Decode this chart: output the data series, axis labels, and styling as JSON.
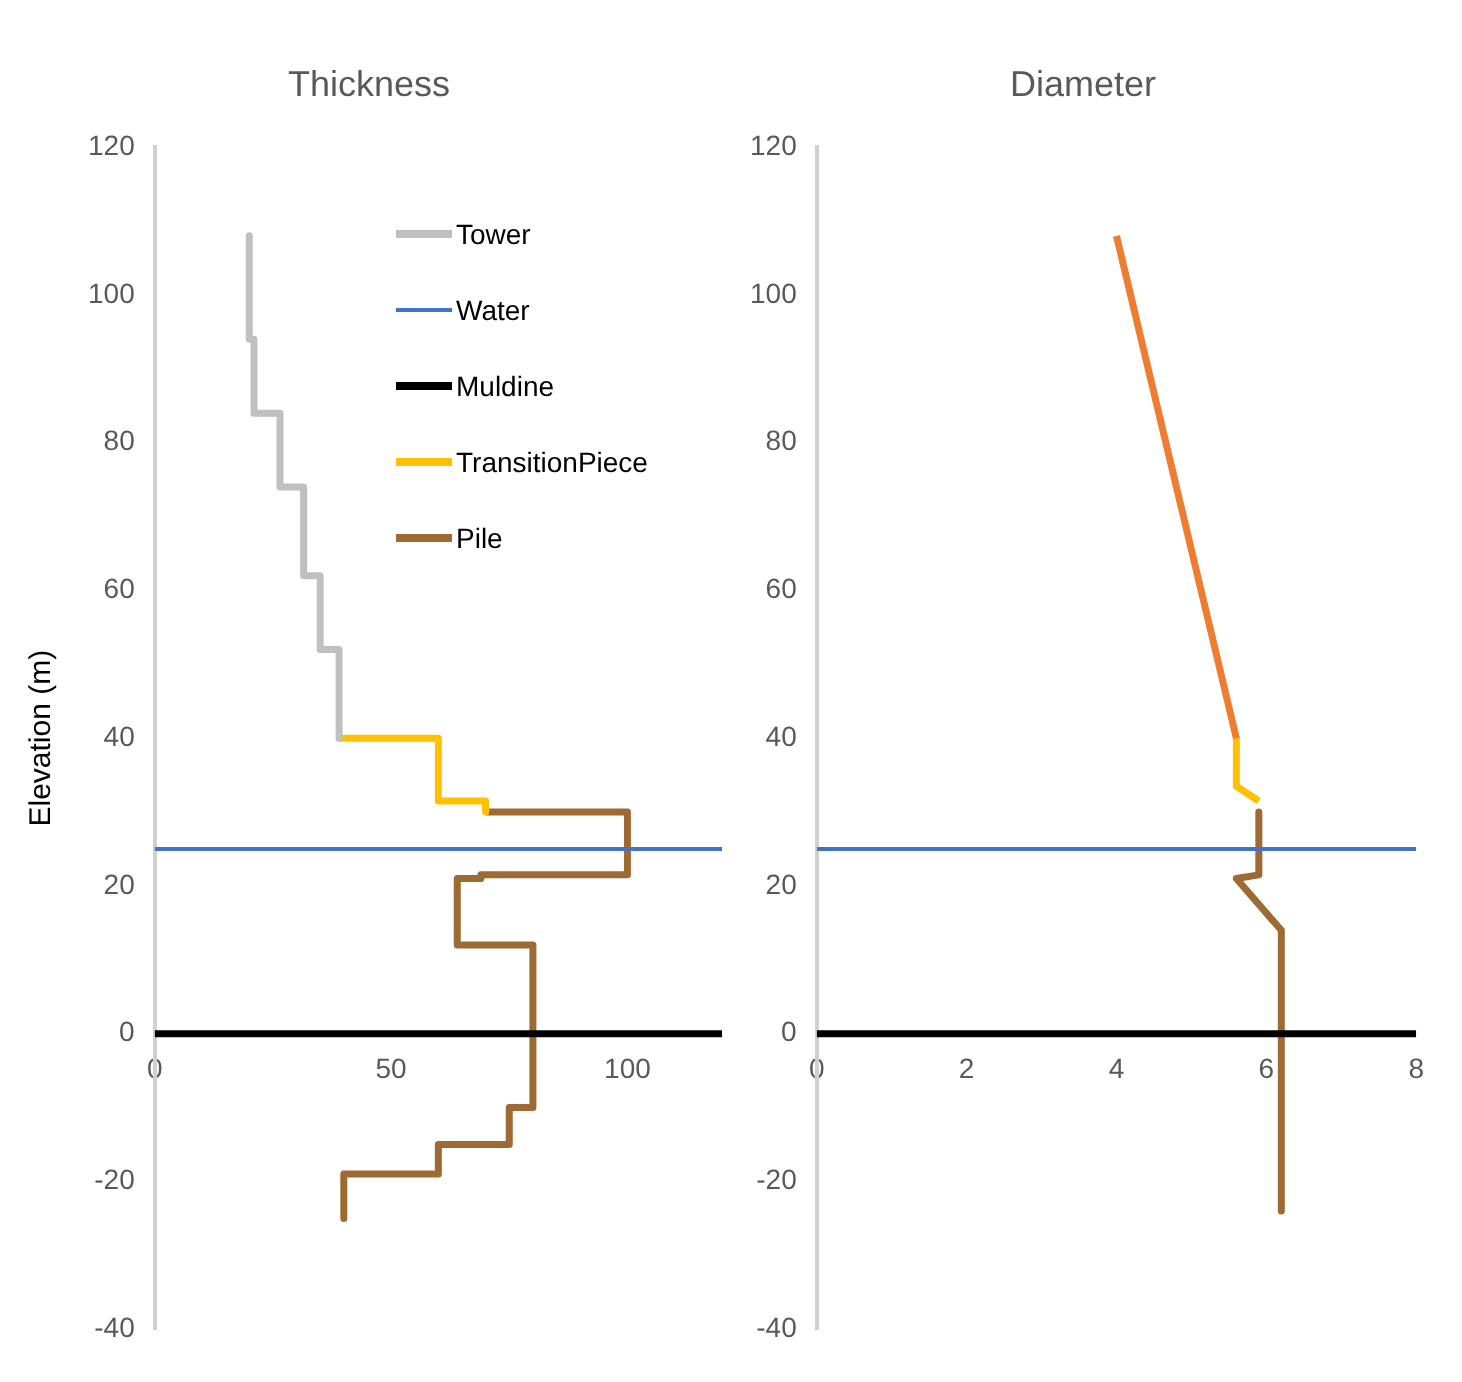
{
  "chart_data": [
    {
      "type": "line",
      "title": "Thickness",
      "ylabel": "Elevation (m)",
      "legend": "top",
      "grid": false,
      "xlim": [
        0,
        120
      ],
      "xticks": [
        0,
        50,
        100
      ],
      "ylim": [
        -40,
        120
      ],
      "yticks": [
        -40,
        -20,
        0,
        20,
        40,
        60,
        80,
        100,
        120
      ],
      "series": [
        {
          "name": "Tower",
          "color": "#c0c0c0",
          "x": [
            20,
            20,
            21,
            21,
            26.5,
            26.5,
            31.5,
            31.5,
            35,
            35,
            39,
            39
          ],
          "values": [
            108,
            94,
            94,
            84,
            84,
            74,
            74,
            62,
            62,
            52,
            52,
            40
          ]
        },
        {
          "name": "Water",
          "color": "#4472c4",
          "x": [
            0,
            120
          ],
          "values": [
            25,
            25
          ]
        },
        {
          "name": "Muldine",
          "color": "#000000",
          "x": [
            0,
            120
          ],
          "values": [
            0,
            0
          ]
        },
        {
          "name": "TransitionPiece",
          "color": "#ffc000",
          "x": [
            39,
            60,
            60,
            70,
            70
          ],
          "values": [
            40,
            40,
            31.5,
            31.5,
            30
          ]
        },
        {
          "name": "Pile",
          "color": "#9e6a34",
          "x": [
            70,
            100,
            100,
            69,
            69,
            64,
            64,
            80,
            80,
            75,
            75,
            60,
            60,
            40,
            40
          ],
          "values": [
            30,
            30,
            21.5,
            21.5,
            21,
            21,
            12,
            12,
            -10,
            -10,
            -15,
            -15,
            -19,
            -19,
            -25
          ]
        }
      ]
    },
    {
      "type": "line",
      "title": "Diameter",
      "legend": false,
      "grid": false,
      "xlim": [
        0,
        8
      ],
      "xticks": [
        0,
        2,
        4,
        6,
        8
      ],
      "ylim": [
        -40,
        120
      ],
      "yticks": [
        -40,
        -20,
        0,
        20,
        40,
        60,
        80,
        100,
        120
      ],
      "series": [
        {
          "color": "#ed7d31",
          "x": [
            4,
            5.6
          ],
          "values": [
            108,
            40
          ]
        },
        {
          "color": "#4472c4",
          "x": [
            0,
            8
          ],
          "values": [
            25,
            25
          ]
        },
        {
          "color": "#000000",
          "x": [
            0,
            8
          ],
          "values": [
            0,
            0
          ]
        },
        {
          "color": "#ffc000",
          "x": [
            5.6,
            5.6,
            5.9
          ],
          "values": [
            40,
            33.5,
            31.5
          ]
        },
        {
          "color": "#9e6a34",
          "x": [
            5.9,
            5.9,
            5.6,
            6.2,
            6.2
          ],
          "values": [
            30,
            21.5,
            21,
            14,
            -24
          ]
        }
      ]
    }
  ]
}
